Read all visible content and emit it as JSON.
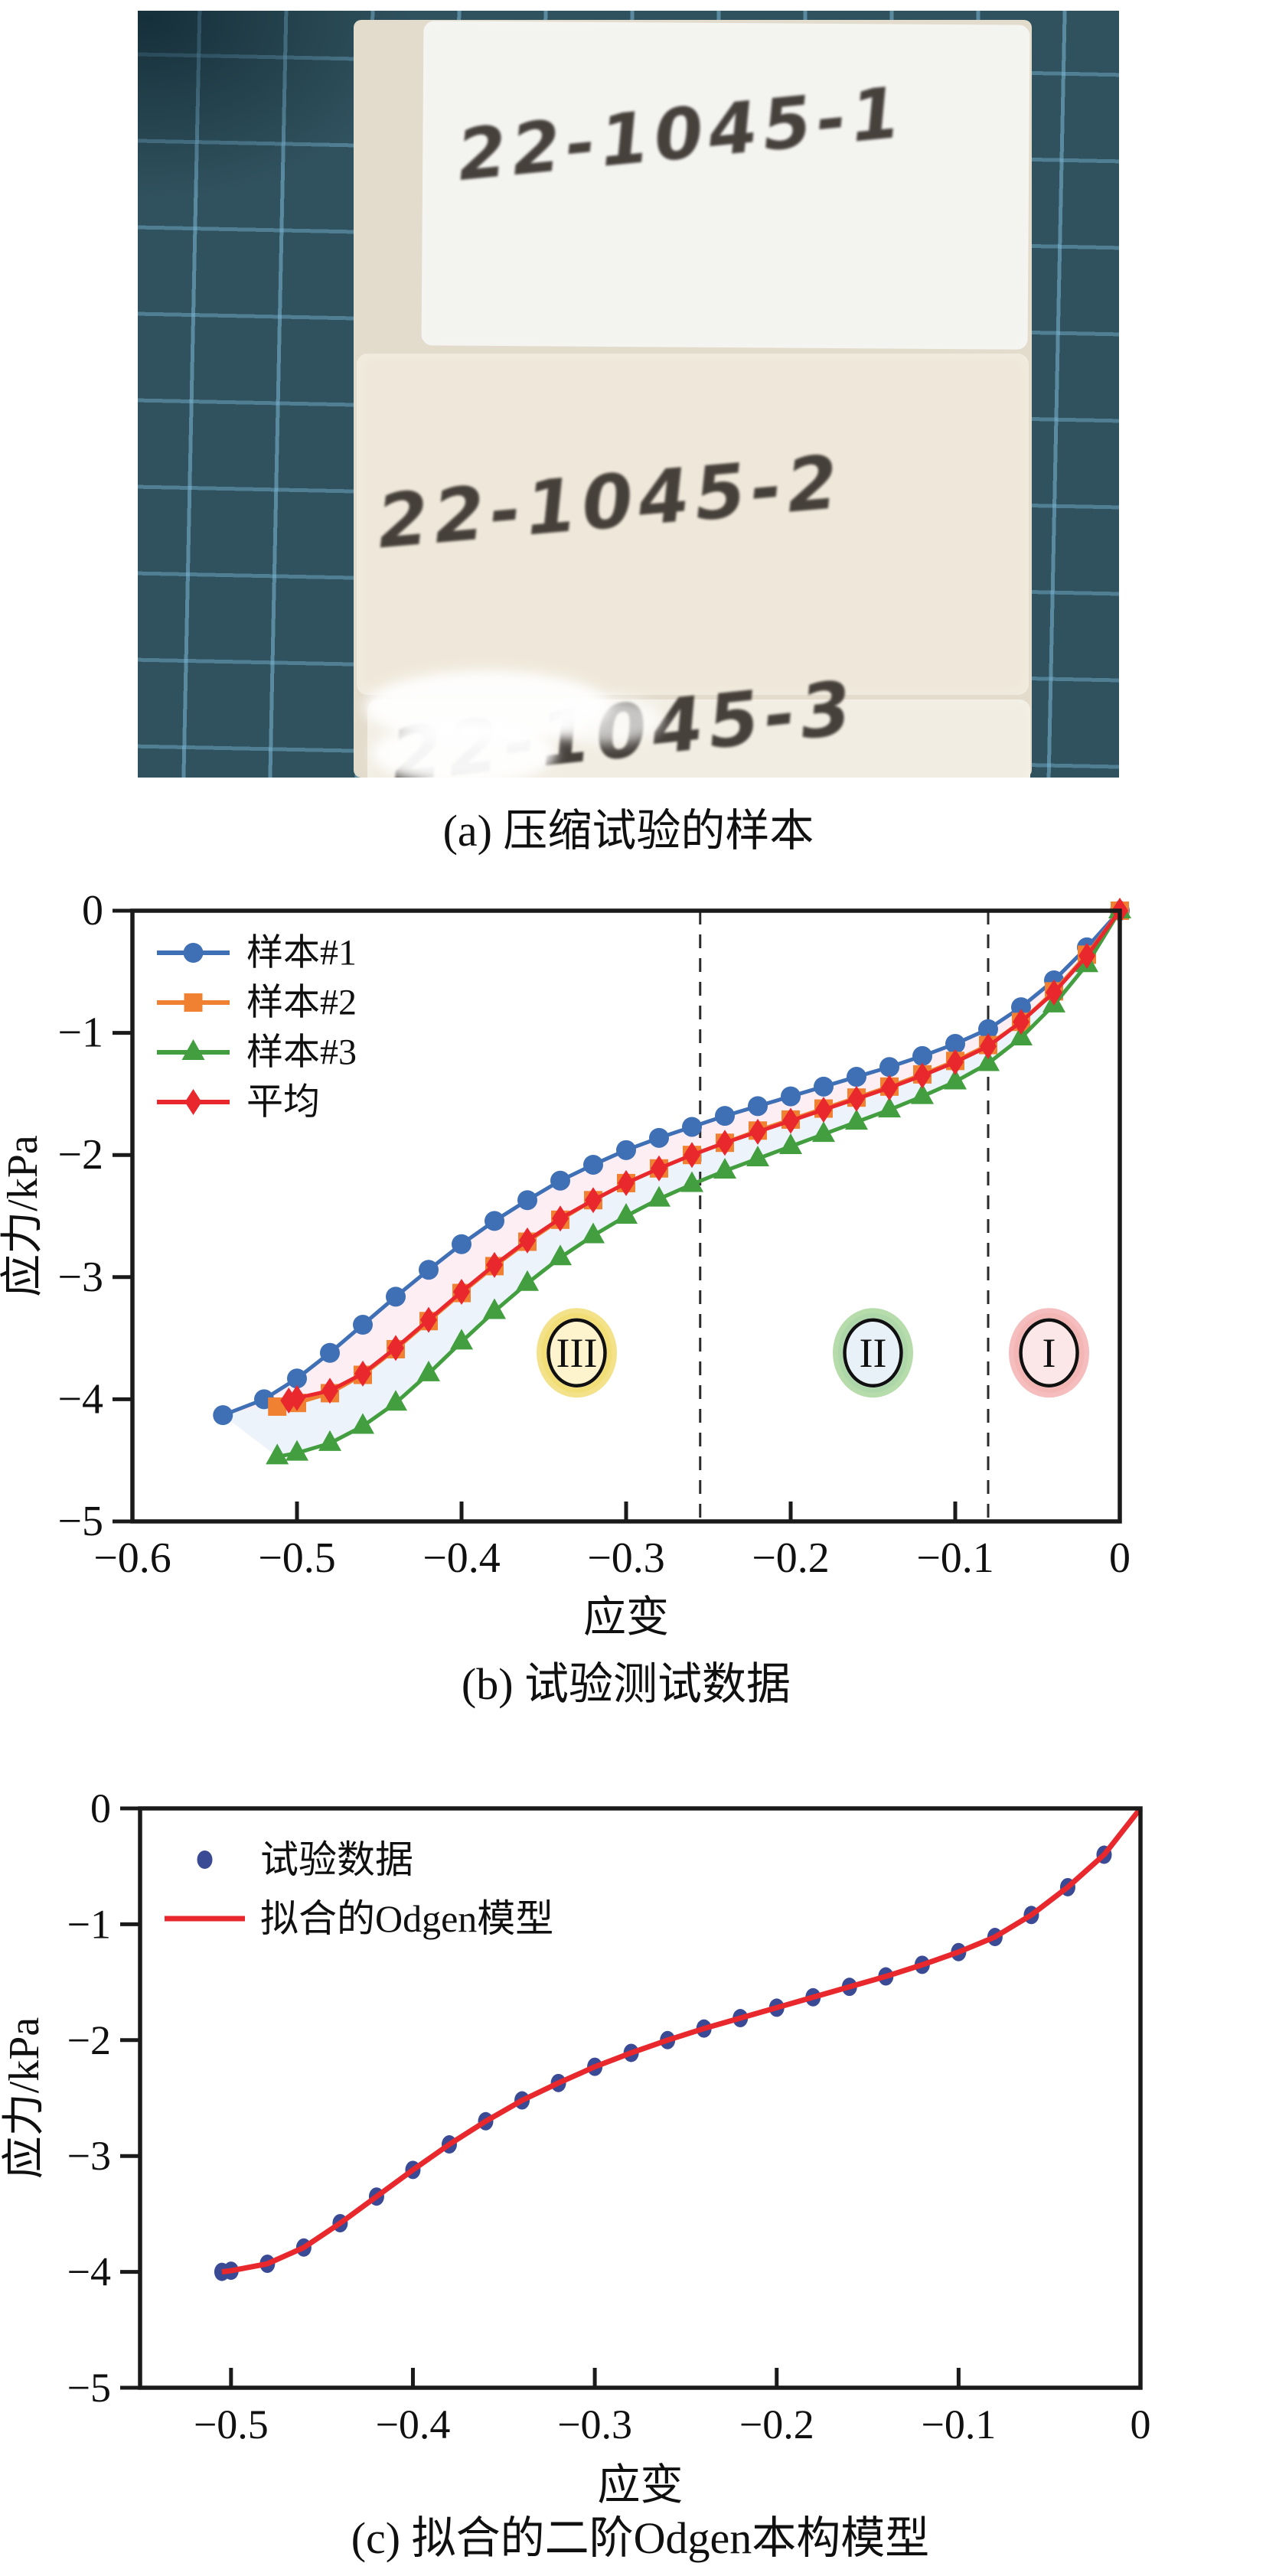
{
  "figure": {
    "panel_a": {
      "caption": "(a) 压缩试验的样本",
      "samples": [
        "22-1045-1",
        "22-1045-2",
        "22-1045-3"
      ],
      "colors": {
        "mat": "#30525e",
        "grid_line": "#7db9d7",
        "foam": "#efe8da",
        "ink": "#3a342f"
      }
    }
  },
  "chart_data": [
    {
      "panel": "b",
      "type": "line",
      "caption": "(b) 试验测试数据",
      "title": "",
      "xlabel": "应变",
      "ylabel": "应力/kPa",
      "xlim": [
        -0.6,
        0
      ],
      "ylim": [
        -5,
        0
      ],
      "xticks": [
        -0.6,
        -0.5,
        -0.4,
        -0.3,
        -0.2,
        -0.1,
        0
      ],
      "xtick_labels": [
        "−0.6",
        "−0.5",
        "−0.4",
        "−0.3",
        "−0.2",
        "−0.1",
        "0"
      ],
      "yticks": [
        0,
        -1,
        -2,
        -3,
        -4,
        -5
      ],
      "ytick_labels": [
        "0",
        "−1",
        "−2",
        "−3",
        "−4",
        "−5"
      ],
      "grid": false,
      "legend_position": "top-left",
      "dashed_vlines": [
        -0.255,
        -0.08
      ],
      "bands": [
        {
          "series_a": 0,
          "series_b": 2,
          "color": "#edf3fb"
        },
        {
          "series_a": 0,
          "series_b": 3,
          "color": "#fdeef3"
        }
      ],
      "region_labels": [
        {
          "label": "III",
          "x": -0.33,
          "y": -3.62,
          "glow": "#ecd24a",
          "fill": "#fdf3cc"
        },
        {
          "label": "II",
          "x": -0.15,
          "y": -3.62,
          "glow": "#8fc97e",
          "fill": "#e9f1f8"
        },
        {
          "label": "I",
          "x": -0.043,
          "y": -3.62,
          "glow": "#f09a9a",
          "fill": "#fbe7e7"
        }
      ],
      "series": [
        {
          "name": "样本#1",
          "color": "#3f6fb5",
          "marker": "circle",
          "legend": "line+marker",
          "x": [
            0,
            -0.02,
            -0.04,
            -0.06,
            -0.08,
            -0.1,
            -0.12,
            -0.14,
            -0.16,
            -0.18,
            -0.2,
            -0.22,
            -0.24,
            -0.26,
            -0.28,
            -0.3,
            -0.32,
            -0.34,
            -0.36,
            -0.38,
            -0.4,
            -0.42,
            -0.44,
            -0.46,
            -0.48,
            -0.5,
            -0.52,
            -0.545
          ],
          "y": [
            0,
            -0.3,
            -0.57,
            -0.79,
            -0.97,
            -1.09,
            -1.19,
            -1.28,
            -1.36,
            -1.44,
            -1.52,
            -1.6,
            -1.68,
            -1.77,
            -1.86,
            -1.96,
            -2.08,
            -2.21,
            -2.37,
            -2.54,
            -2.73,
            -2.94,
            -3.16,
            -3.39,
            -3.62,
            -3.83,
            -4.0,
            -4.13
          ]
        },
        {
          "name": "样本#2",
          "color": "#f08133",
          "marker": "square",
          "legend": "line+marker",
          "x": [
            0,
            -0.02,
            -0.04,
            -0.06,
            -0.08,
            -0.1,
            -0.12,
            -0.14,
            -0.16,
            -0.18,
            -0.2,
            -0.22,
            -0.24,
            -0.26,
            -0.28,
            -0.3,
            -0.32,
            -0.34,
            -0.36,
            -0.38,
            -0.4,
            -0.42,
            -0.44,
            -0.46,
            -0.48,
            -0.5,
            -0.512
          ],
          "y": [
            0,
            -0.36,
            -0.66,
            -0.91,
            -1.1,
            -1.23,
            -1.34,
            -1.44,
            -1.53,
            -1.62,
            -1.71,
            -1.8,
            -1.9,
            -2.0,
            -2.11,
            -2.23,
            -2.37,
            -2.53,
            -2.71,
            -2.91,
            -3.13,
            -3.36,
            -3.59,
            -3.8,
            -3.95,
            -4.03,
            -4.06
          ]
        },
        {
          "name": "样本#3",
          "color": "#429e3f",
          "marker": "triangle",
          "legend": "line+marker",
          "x": [
            0,
            -0.02,
            -0.04,
            -0.06,
            -0.08,
            -0.1,
            -0.12,
            -0.14,
            -0.16,
            -0.18,
            -0.2,
            -0.22,
            -0.24,
            -0.26,
            -0.28,
            -0.3,
            -0.32,
            -0.34,
            -0.36,
            -0.38,
            -0.4,
            -0.42,
            -0.44,
            -0.46,
            -0.48,
            -0.5,
            -0.512
          ],
          "y": [
            0,
            -0.44,
            -0.77,
            -1.04,
            -1.25,
            -1.4,
            -1.52,
            -1.63,
            -1.73,
            -1.83,
            -1.93,
            -2.03,
            -2.13,
            -2.24,
            -2.36,
            -2.5,
            -2.66,
            -2.84,
            -3.05,
            -3.28,
            -3.53,
            -3.79,
            -4.03,
            -4.22,
            -4.36,
            -4.44,
            -4.47
          ]
        },
        {
          "name": "平均",
          "color": "#e8282c",
          "marker": "diamond",
          "legend": "line+marker",
          "x": [
            0,
            -0.02,
            -0.04,
            -0.06,
            -0.08,
            -0.1,
            -0.12,
            -0.14,
            -0.16,
            -0.18,
            -0.2,
            -0.22,
            -0.24,
            -0.26,
            -0.28,
            -0.3,
            -0.32,
            -0.34,
            -0.36,
            -0.38,
            -0.4,
            -0.42,
            -0.44,
            -0.46,
            -0.48,
            -0.5,
            -0.505
          ],
          "y": [
            0,
            -0.37,
            -0.67,
            -0.91,
            -1.11,
            -1.24,
            -1.35,
            -1.45,
            -1.54,
            -1.63,
            -1.72,
            -1.81,
            -1.9,
            -2.0,
            -2.11,
            -2.23,
            -2.37,
            -2.52,
            -2.7,
            -2.9,
            -3.12,
            -3.35,
            -3.58,
            -3.79,
            -3.93,
            -3.99,
            -4.01
          ]
        }
      ]
    },
    {
      "panel": "c",
      "type": "scatter",
      "caption": "(c) 拟合的二阶Odgen本构模型",
      "title": "",
      "xlabel": "应变",
      "ylabel": "应力/kPa",
      "xlim": [
        -0.55,
        0
      ],
      "ylim": [
        -5,
        0
      ],
      "xticks": [
        -0.5,
        -0.4,
        -0.3,
        -0.2,
        -0.1,
        0
      ],
      "xtick_labels": [
        "−0.5",
        "−0.4",
        "−0.3",
        "−0.2",
        "−0.1",
        "0"
      ],
      "yticks": [
        0,
        -1,
        -2,
        -3,
        -4,
        -5
      ],
      "ytick_labels": [
        "0",
        "−1",
        "−2",
        "−3",
        "−4",
        "−5"
      ],
      "grid": false,
      "legend_position": "top-left",
      "series": [
        {
          "name": "试验数据",
          "color": "#3b4a94",
          "marker": "dot",
          "draw": "scatter",
          "legend": "marker",
          "x": [
            -0.02,
            -0.04,
            -0.06,
            -0.08,
            -0.1,
            -0.12,
            -0.14,
            -0.16,
            -0.18,
            -0.2,
            -0.22,
            -0.24,
            -0.26,
            -0.28,
            -0.3,
            -0.32,
            -0.34,
            -0.36,
            -0.38,
            -0.4,
            -0.42,
            -0.44,
            -0.46,
            -0.48,
            -0.5,
            -0.505
          ],
          "y": [
            -0.4,
            -0.68,
            -0.92,
            -1.11,
            -1.24,
            -1.35,
            -1.45,
            -1.54,
            -1.63,
            -1.72,
            -1.81,
            -1.9,
            -2.0,
            -2.11,
            -2.23,
            -2.37,
            -2.52,
            -2.7,
            -2.9,
            -3.12,
            -3.35,
            -3.58,
            -3.79,
            -3.93,
            -3.99,
            -4.0
          ]
        },
        {
          "name": "拟合的Odgen模型",
          "color": "#e8282c",
          "draw": "line",
          "legend": "line",
          "line_width": 7,
          "x": [
            0,
            -0.02,
            -0.04,
            -0.06,
            -0.08,
            -0.1,
            -0.12,
            -0.14,
            -0.16,
            -0.18,
            -0.2,
            -0.22,
            -0.24,
            -0.26,
            -0.28,
            -0.3,
            -0.32,
            -0.34,
            -0.36,
            -0.38,
            -0.4,
            -0.42,
            -0.44,
            -0.46,
            -0.48,
            -0.5,
            -0.505
          ],
          "y": [
            0,
            -0.4,
            -0.68,
            -0.92,
            -1.11,
            -1.24,
            -1.35,
            -1.45,
            -1.54,
            -1.63,
            -1.72,
            -1.81,
            -1.9,
            -2.0,
            -2.11,
            -2.23,
            -2.37,
            -2.52,
            -2.7,
            -2.9,
            -3.12,
            -3.35,
            -3.58,
            -3.79,
            -3.93,
            -3.99,
            -4.0
          ]
        }
      ]
    }
  ]
}
